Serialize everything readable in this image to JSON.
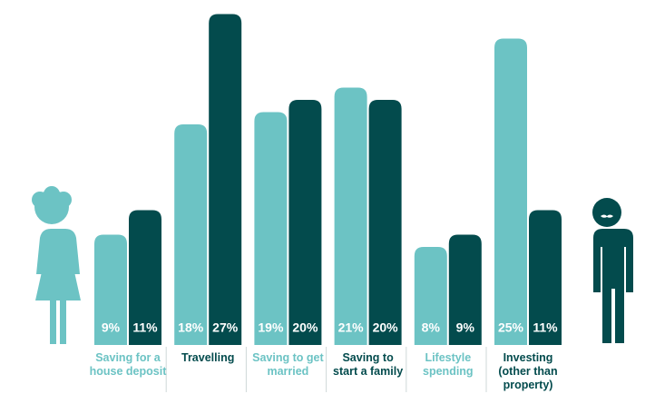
{
  "chart_data": {
    "type": "bar",
    "categories": [
      "Saving for a house deposit",
      "Travelling",
      "Saving to get married",
      "Saving to start a family",
      "Lifestyle spending",
      "Investing (other than property)"
    ],
    "category_colors": [
      "#6cc3c4",
      "#034b4d",
      "#6cc3c4",
      "#034b4d",
      "#6cc3c4",
      "#034b4d"
    ],
    "series": [
      {
        "color": "#6cc3c4",
        "values": [
          9,
          18,
          19,
          21,
          8,
          25
        ],
        "value_labels": [
          "9%",
          "18%",
          "19%",
          "21%",
          "8%",
          "25%"
        ]
      },
      {
        "color": "#034b4d",
        "values": [
          11,
          27,
          20,
          20,
          9,
          11
        ],
        "value_labels": [
          "11%",
          "27%",
          "20%",
          "20%",
          "9%",
          "11%"
        ]
      }
    ]
  }
}
